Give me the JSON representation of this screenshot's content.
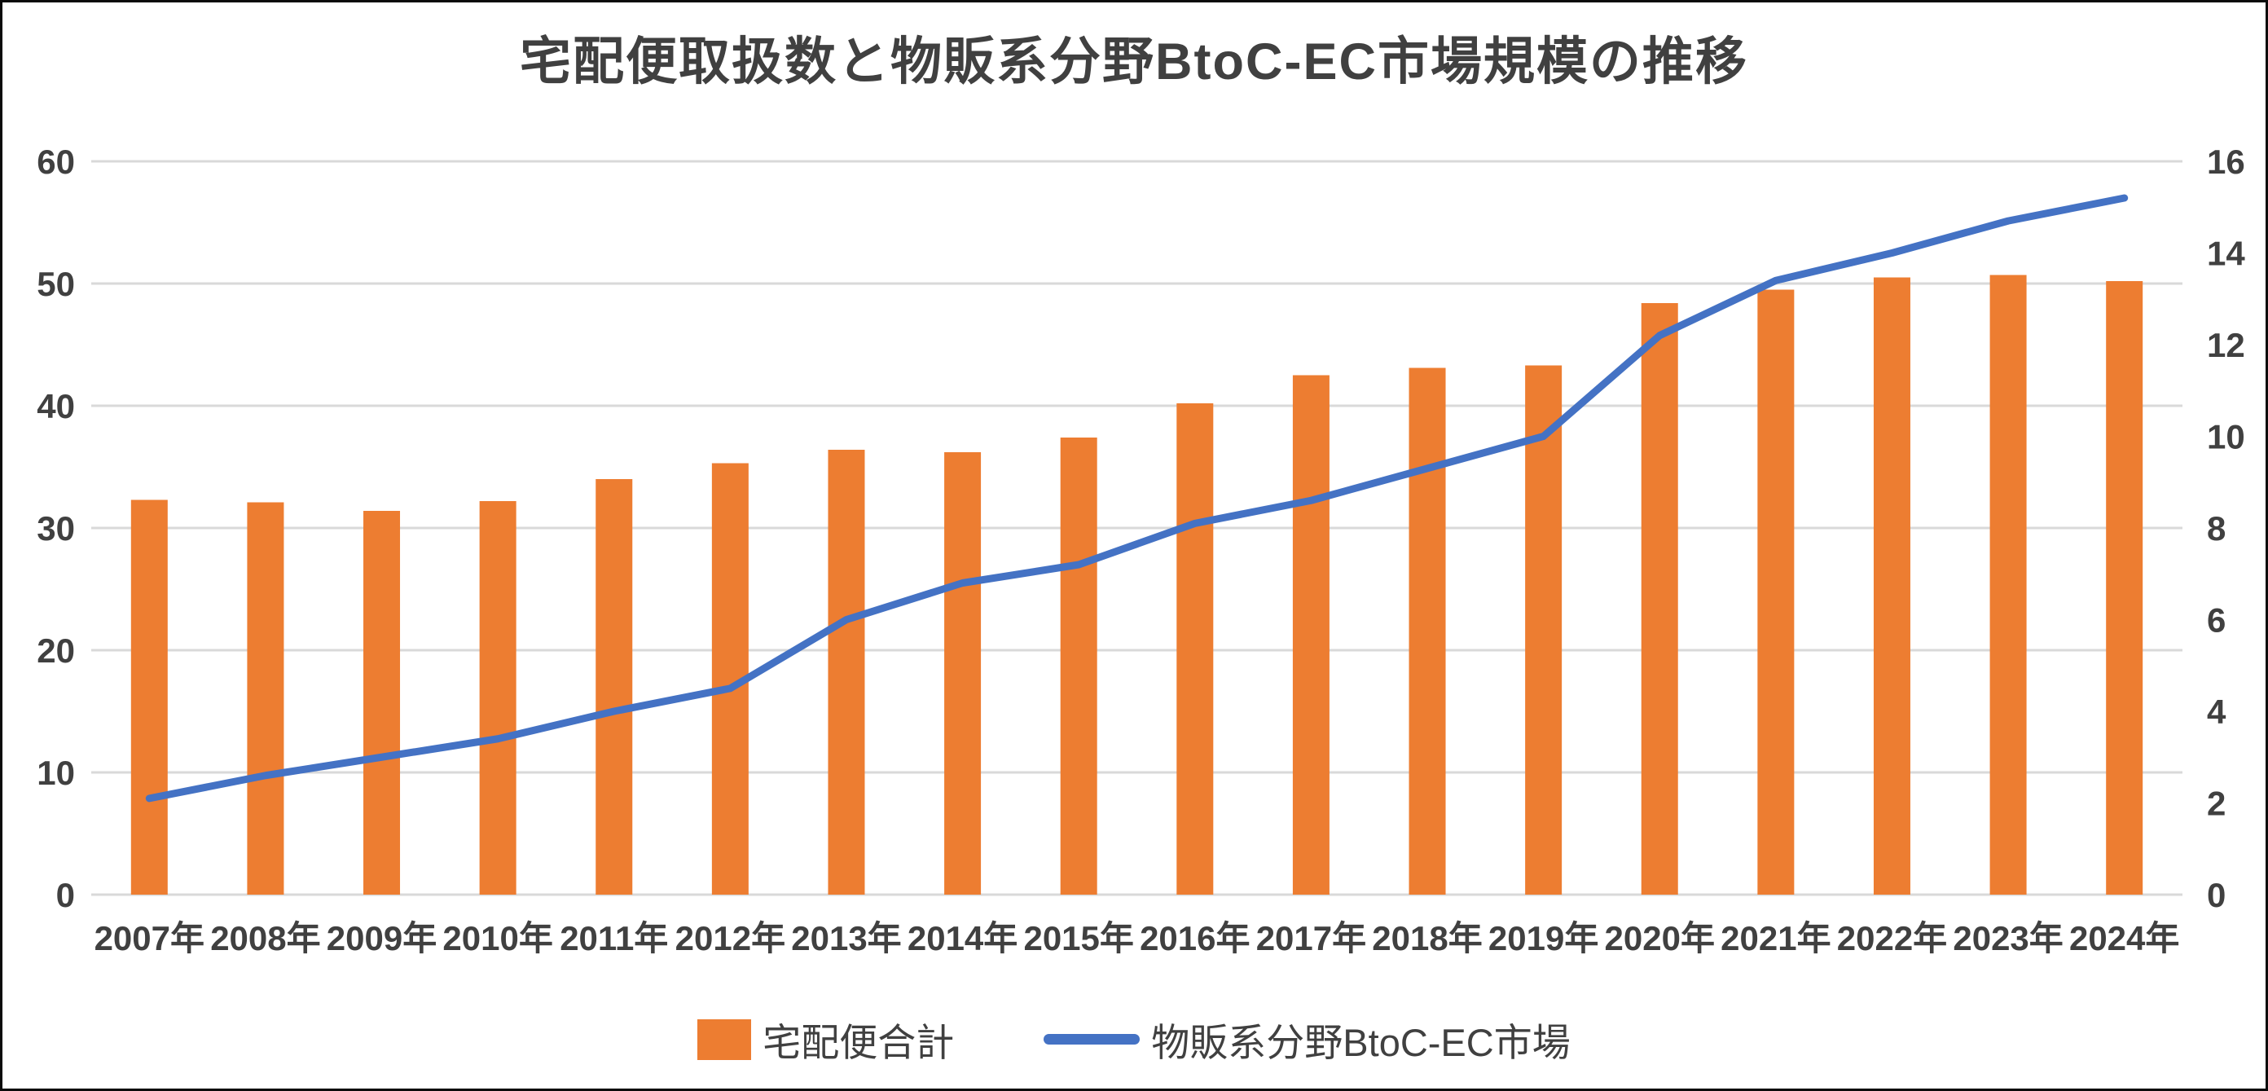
{
  "page": {
    "background": "#FFFFFF",
    "border_color": "#0A0A0A",
    "text_color": "#404040"
  },
  "chart_data": {
    "type": "combo-bar-line",
    "title": "宅配便取扱数と物販系分野BtoC-EC市場規模の推移",
    "categories": [
      "2007年",
      "2008年",
      "2009年",
      "2010年",
      "2011年",
      "2012年",
      "2013年",
      "2014年",
      "2015年",
      "2016年",
      "2017年",
      "2018年",
      "2019年",
      "2020年",
      "2021年",
      "2022年",
      "2023年",
      "2024年"
    ],
    "series": [
      {
        "name": "宅配便合計",
        "chart_type": "bar",
        "axis": "left",
        "color": "#ED7D31",
        "values": [
          32.3,
          32.1,
          31.4,
          32.2,
          34.0,
          35.3,
          36.4,
          36.2,
          37.4,
          40.2,
          42.5,
          43.1,
          43.3,
          48.4,
          49.5,
          50.5,
          50.7,
          50.2
        ]
      },
      {
        "name": "物販系分野BtoC-EC市場",
        "chart_type": "line",
        "axis": "right",
        "color": "#4472C4",
        "values": [
          2.1,
          2.6,
          3.0,
          3.4,
          4.0,
          4.5,
          6.0,
          6.8,
          7.2,
          8.1,
          8.6,
          9.3,
          10.0,
          12.2,
          13.4,
          14.0,
          14.7,
          15.2
        ]
      }
    ],
    "left_axis": {
      "min": 0,
      "max": 60,
      "step": 10,
      "tick_labels": [
        "0",
        "10",
        "20",
        "30",
        "40",
        "50",
        "60"
      ]
    },
    "right_axis": {
      "min": 0,
      "max": 16,
      "step": 2,
      "tick_labels": [
        "0",
        "2",
        "4",
        "6",
        "8",
        "10",
        "12",
        "14",
        "16"
      ]
    },
    "grid": {
      "show": true,
      "color": "#D9D9D9"
    },
    "legend": {
      "position": "bottom"
    }
  }
}
